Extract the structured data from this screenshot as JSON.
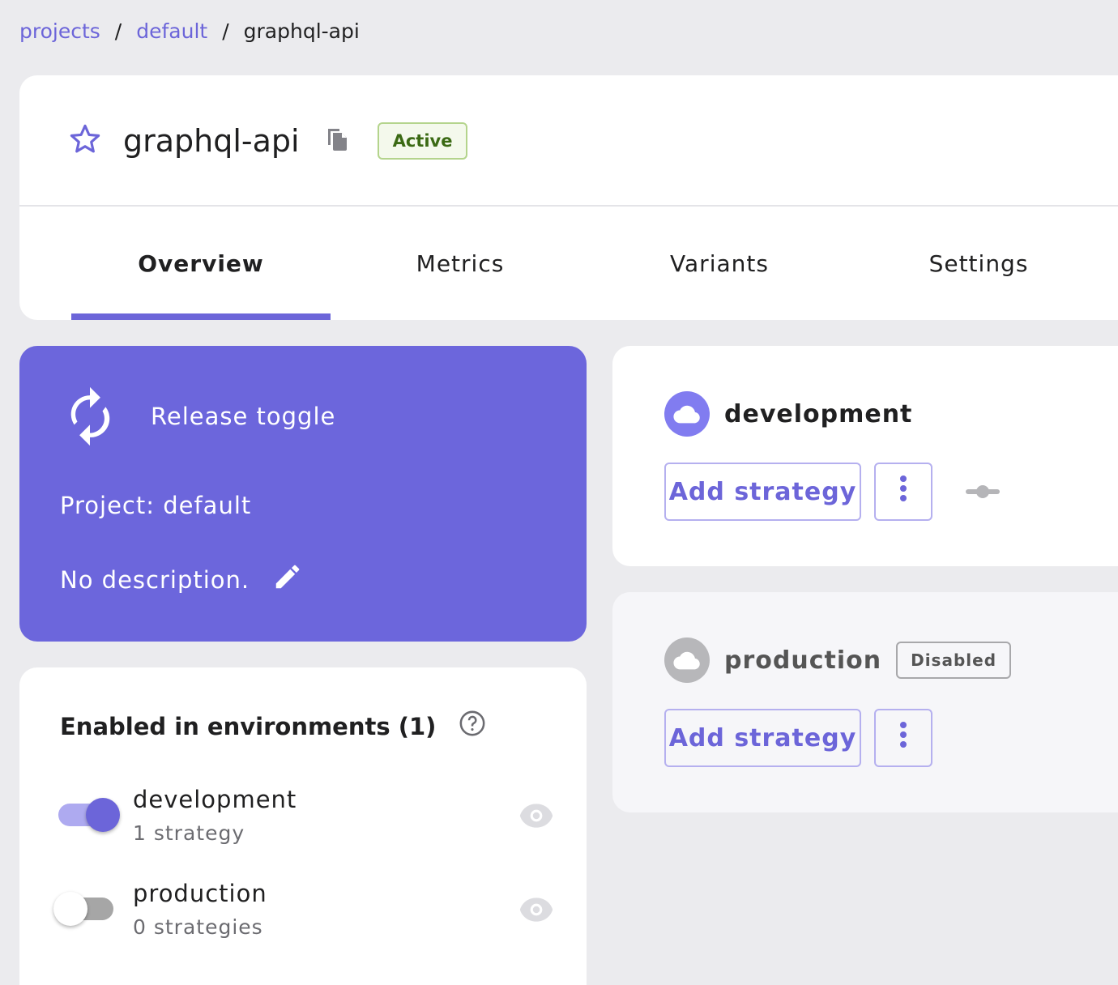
{
  "breadcrumb": {
    "items": [
      "projects",
      "default"
    ],
    "current": "graphql-api"
  },
  "header": {
    "title": "graphql-api",
    "status": "Active"
  },
  "tabs": [
    {
      "label": "Overview",
      "active": true
    },
    {
      "label": "Metrics"
    },
    {
      "label": "Variants"
    },
    {
      "label": "Settings"
    }
  ],
  "toggle_info": {
    "type": "Release toggle",
    "project": "Project: default",
    "description": "No description."
  },
  "environments_panel": {
    "title": "Enabled in environments (1)",
    "items": [
      {
        "name": "development",
        "strategies": "1 strategy",
        "enabled": true
      },
      {
        "name": "production",
        "strategies": "0 strategies",
        "enabled": false
      }
    ]
  },
  "env_cards": [
    {
      "name": "development",
      "add_label": "Add strategy"
    },
    {
      "name": "production",
      "badge": "Disabled",
      "add_label": "Add strategy"
    }
  ],
  "colors": {
    "accent": "#6c65d9",
    "active_badge": "#3b6a14"
  }
}
